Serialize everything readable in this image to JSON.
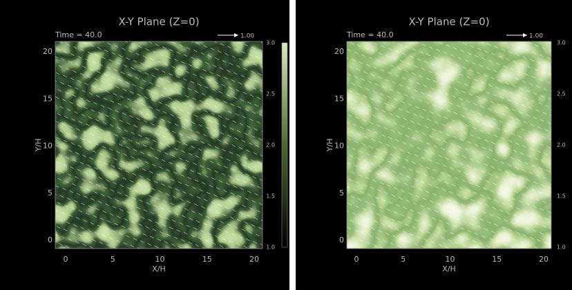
{
  "panels": [
    {
      "title": "X-Y Plane (Z=0)",
      "time": "Time = 40.0",
      "vector_scale": "1.00",
      "x_label": "X/H",
      "y_label": "Y/H",
      "x_ticks": [
        "0",
        "5",
        "10",
        "15",
        "20"
      ],
      "y_ticks": [
        "0",
        "5",
        "10",
        "15",
        "20"
      ],
      "colorbar_ticks": [
        "3.0",
        "2.5",
        "2.0",
        "1.5",
        "1.0"
      ]
    },
    {
      "title": "X-Y Plane (Z=0)",
      "time": "Time = 40.0",
      "vector_scale": "1.00",
      "x_label": "X/H",
      "y_label": "Y/H",
      "x_ticks": [
        "0",
        "5",
        "10",
        "15",
        "20"
      ],
      "y_ticks": [
        "0",
        "5",
        "10",
        "15",
        "20"
      ],
      "colorbar_ticks": [
        "3.0",
        "2.5",
        "2.0",
        "1.5",
        "1.0"
      ]
    }
  ]
}
